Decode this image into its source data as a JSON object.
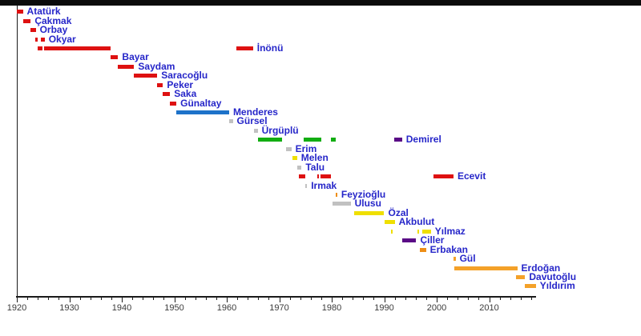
{
  "page": {
    "background": "#ffffff",
    "top_bar_color": "#0b0b0b"
  },
  "chart_data": {
    "type": "timeline",
    "title": "",
    "description": "Gantt-style timeline of Turkish prime ministers, colored by party",
    "x_axis": {
      "min": 1920,
      "max": 2018.9,
      "tick_years": [
        1920,
        1930,
        1940,
        1950,
        1960,
        1970,
        1980,
        1990,
        2000,
        2010
      ],
      "minor_tick_step": 2,
      "axis_color": "#1a1a1a",
      "label_color": "#3b3b3b"
    },
    "grid": "off",
    "legend": "none",
    "label_position": "right-of-last-bar",
    "colors": {
      "red": "#DE1111",
      "blue": "#1D72C9",
      "gray": "#C1C1C1",
      "green": "#12AD12",
      "yellow": "#EFDF00",
      "purple": "#5A0B86",
      "orange": "#F4A129",
      "dark_orange": "#EE8E16",
      "label": "#2626C9"
    },
    "prime_ministers": [
      {
        "name": "Atatürk",
        "terms": [
          {
            "start": 1920.05,
            "end": 1921.15,
            "color": "red"
          }
        ]
      },
      {
        "name": "Çakmak",
        "terms": [
          {
            "start": 1921.15,
            "end": 1922.65,
            "color": "red"
          }
        ]
      },
      {
        "name": "Orbay",
        "terms": [
          {
            "start": 1922.55,
            "end": 1923.6,
            "color": "red"
          }
        ]
      },
      {
        "name": "Okyar",
        "terms": [
          {
            "start": 1923.45,
            "end": 1923.95,
            "color": "red"
          },
          {
            "start": 1924.55,
            "end": 1925.3,
            "color": "red"
          }
        ]
      },
      {
        "name": "İnönü",
        "terms": [
          {
            "start": 1923.95,
            "end": 1924.9,
            "color": "red"
          },
          {
            "start": 1925.25,
            "end": 1937.85,
            "color": "red"
          },
          {
            "start": 1961.9,
            "end": 1965.0,
            "color": "red"
          }
        ]
      },
      {
        "name": "Bayar",
        "terms": [
          {
            "start": 1937.85,
            "end": 1939.3,
            "color": "red"
          }
        ]
      },
      {
        "name": "Saydam",
        "terms": [
          {
            "start": 1939.3,
            "end": 1942.35,
            "color": "red"
          }
        ]
      },
      {
        "name": "Saracoğlu",
        "terms": [
          {
            "start": 1942.35,
            "end": 1946.75,
            "color": "red"
          }
        ]
      },
      {
        "name": "Peker",
        "terms": [
          {
            "start": 1946.75,
            "end": 1947.85,
            "color": "red"
          }
        ]
      },
      {
        "name": "Saka",
        "terms": [
          {
            "start": 1947.85,
            "end": 1949.2,
            "color": "red"
          }
        ]
      },
      {
        "name": "Günaltay",
        "terms": [
          {
            "start": 1949.2,
            "end": 1950.4,
            "color": "red"
          }
        ]
      },
      {
        "name": "Menderes",
        "terms": [
          {
            "start": 1950.4,
            "end": 1960.45,
            "color": "blue"
          }
        ]
      },
      {
        "name": "Gürsel",
        "terms": [
          {
            "start": 1960.45,
            "end": 1961.15,
            "color": "gray"
          }
        ]
      },
      {
        "name": "Ürgüplü",
        "terms": [
          {
            "start": 1965.15,
            "end": 1965.9,
            "color": "gray"
          }
        ]
      },
      {
        "name": "Demirel",
        "terms": [
          {
            "start": 1965.9,
            "end": 1970.6,
            "color": "green"
          },
          {
            "start": 1974.6,
            "end": 1978.0,
            "color": "green"
          },
          {
            "start": 1979.9,
            "end": 1980.75,
            "color": "green"
          },
          {
            "start": 1991.85,
            "end": 1993.4,
            "color": "purple"
          }
        ]
      },
      {
        "name": "Erim",
        "terms": [
          {
            "start": 1971.25,
            "end": 1972.3,
            "color": "gray"
          }
        ]
      },
      {
        "name": "Melen",
        "terms": [
          {
            "start": 1972.5,
            "end": 1973.4,
            "color": "yellow"
          }
        ]
      },
      {
        "name": "Talu",
        "terms": [
          {
            "start": 1973.5,
            "end": 1974.25,
            "color": "gray"
          }
        ]
      },
      {
        "name": "Ecevit",
        "terms": [
          {
            "start": 1973.7,
            "end": 1974.9,
            "color": "red"
          },
          {
            "start": 1977.3,
            "end": 1977.6,
            "color": "red"
          },
          {
            "start": 1977.85,
            "end": 1979.85,
            "color": "red"
          },
          {
            "start": 1999.4,
            "end": 2003.2,
            "color": "red"
          }
        ]
      },
      {
        "name": "Irmak",
        "terms": [
          {
            "start": 1974.95,
            "end": 1975.3,
            "color": "gray"
          }
        ]
      },
      {
        "name": "Feyzioğlu",
        "terms": [
          {
            "start": 1980.75,
            "end": 1981.0,
            "color": "dark_orange"
          }
        ]
      },
      {
        "name": "Ulusu",
        "terms": [
          {
            "start": 1980.1,
            "end": 1983.6,
            "color": "gray"
          }
        ]
      },
      {
        "name": "Özal",
        "terms": [
          {
            "start": 1984.2,
            "end": 1990.0,
            "color": "yellow"
          }
        ]
      },
      {
        "name": "Akbulut",
        "terms": [
          {
            "start": 1990.15,
            "end": 1992.0,
            "color": "yellow"
          }
        ]
      },
      {
        "name": "Yılmaz",
        "terms": [
          {
            "start": 1991.25,
            "end": 1991.6,
            "color": "yellow"
          },
          {
            "start": 1996.3,
            "end": 1996.65,
            "color": "yellow"
          },
          {
            "start": 1997.25,
            "end": 1998.9,
            "color": "yellow"
          }
        ]
      },
      {
        "name": "Çiller",
        "terms": [
          {
            "start": 1993.5,
            "end": 1996.1,
            "color": "purple"
          }
        ]
      },
      {
        "name": "Erbakan",
        "terms": [
          {
            "start": 1996.75,
            "end": 1997.95,
            "color": "dark_orange"
          }
        ]
      },
      {
        "name": "Gül",
        "terms": [
          {
            "start": 2003.15,
            "end": 2003.6,
            "color": "orange"
          }
        ]
      },
      {
        "name": "Erdoğan",
        "terms": [
          {
            "start": 2003.3,
            "end": 2015.35,
            "color": "orange"
          }
        ]
      },
      {
        "name": "Davutoğlu",
        "terms": [
          {
            "start": 2015.1,
            "end": 2016.85,
            "color": "orange"
          }
        ]
      },
      {
        "name": "Yıldırım",
        "terms": [
          {
            "start": 2016.85,
            "end": 2018.9,
            "color": "orange"
          }
        ]
      }
    ]
  }
}
